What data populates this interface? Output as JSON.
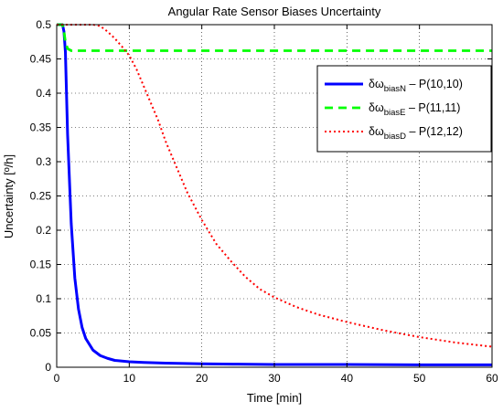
{
  "chart_data": {
    "type": "line",
    "title": "Angular Rate Sensor Biases Uncertainty",
    "xlabel": "Time [min]",
    "ylabel": "Uncertainty [º/h]",
    "xlim": [
      0,
      60
    ],
    "ylim": [
      0,
      0.5
    ],
    "xticks": [
      "0",
      "10",
      "20",
      "30",
      "40",
      "50",
      "60"
    ],
    "yticks": [
      "0",
      "0.05",
      "0.1",
      "0.15",
      "0.2",
      "0.25",
      "0.3",
      "0.35",
      "0.4",
      "0.45",
      "0.5"
    ],
    "grid": true,
    "legend_position": "upper-right",
    "series": [
      {
        "name": "δω biasN – P(10,10)",
        "legend": {
          "symbol": "δω",
          "subscript": "biasN",
          "suffix": " – P(10,10)"
        },
        "color": "#0000ff",
        "style": "solid",
        "x": [
          0,
          0.5,
          0.8,
          1.0,
          1.2,
          1.5,
          2,
          2.5,
          3,
          3.5,
          4,
          5,
          6,
          7,
          8,
          10,
          12,
          15,
          20,
          25,
          30,
          40,
          50,
          60
        ],
        "y": [
          0.5,
          0.5,
          0.5,
          0.49,
          0.46,
          0.34,
          0.21,
          0.13,
          0.085,
          0.058,
          0.042,
          0.025,
          0.017,
          0.013,
          0.01,
          0.008,
          0.007,
          0.006,
          0.005,
          0.0045,
          0.004,
          0.004,
          0.0035,
          0.0035
        ]
      },
      {
        "name": "δω biasE – P(11,11)",
        "legend": {
          "symbol": "δω",
          "subscript": "biasE",
          "suffix": " – P(11,11)"
        },
        "color": "#00ff00",
        "style": "dashed",
        "x": [
          0,
          0.5,
          0.8,
          1.0,
          1.2,
          1.5,
          2,
          10,
          20,
          30,
          40,
          50,
          60
        ],
        "y": [
          0.5,
          0.5,
          0.5,
          0.49,
          0.475,
          0.465,
          0.462,
          0.462,
          0.462,
          0.462,
          0.462,
          0.462,
          0.462
        ]
      },
      {
        "name": "δω biasD – P(12,12)",
        "legend": {
          "symbol": "δω",
          "subscript": "biasD",
          "suffix": " – P(12,12)"
        },
        "color": "#ff0000",
        "style": "dotted",
        "x": [
          0,
          2,
          4,
          5,
          6,
          7,
          8,
          9,
          10,
          11,
          12,
          13,
          14,
          15,
          16,
          18,
          20,
          22,
          24,
          26,
          28,
          30,
          33,
          36,
          40,
          45,
          50,
          55,
          60
        ],
        "y": [
          0.5,
          0.5,
          0.5,
          0.5,
          0.498,
          0.49,
          0.48,
          0.468,
          0.455,
          0.435,
          0.41,
          0.385,
          0.36,
          0.33,
          0.305,
          0.255,
          0.215,
          0.18,
          0.155,
          0.132,
          0.114,
          0.102,
          0.088,
          0.077,
          0.066,
          0.054,
          0.044,
          0.036,
          0.03
        ]
      }
    ]
  }
}
